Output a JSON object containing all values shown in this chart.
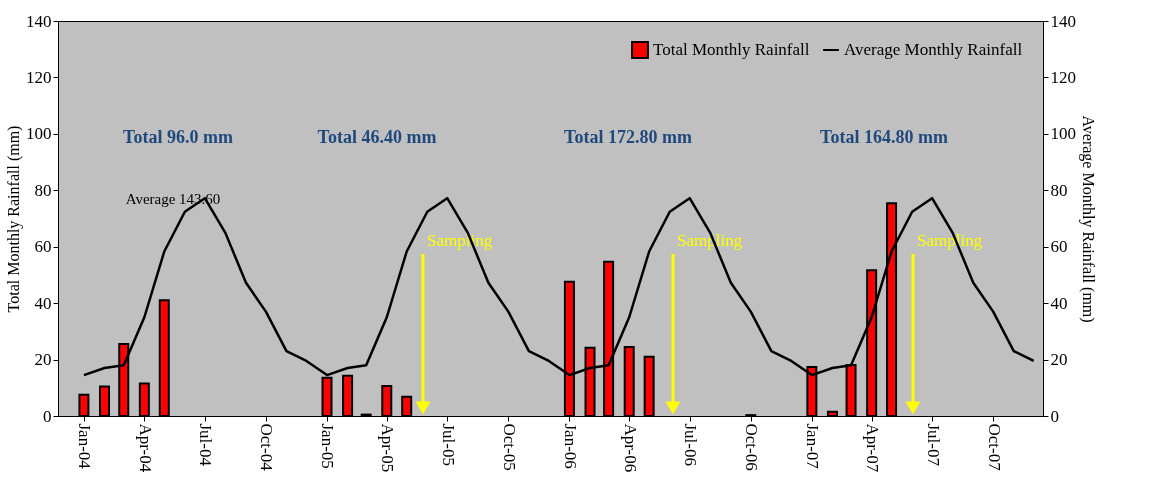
{
  "chart_data": {
    "type": "bar",
    "x": [
      "2004-01",
      "2004-02",
      "2004-03",
      "2004-04",
      "2004-05",
      "2004-06",
      "2004-07",
      "2004-08",
      "2004-09",
      "2004-10",
      "2004-11",
      "2004-12",
      "2005-01",
      "2005-02",
      "2005-03",
      "2005-04",
      "2005-05",
      "2005-06",
      "2005-07",
      "2005-08",
      "2005-09",
      "2005-10",
      "2005-11",
      "2005-12",
      "2006-01",
      "2006-02",
      "2006-03",
      "2006-04",
      "2006-05",
      "2006-06",
      "2006-07",
      "2006-08",
      "2006-09",
      "2006-10",
      "2006-11",
      "2006-12",
      "2007-01",
      "2007-02",
      "2007-03",
      "2007-04",
      "2007-05",
      "2007-06",
      "2007-07",
      "2007-08",
      "2007-09",
      "2007-10",
      "2007-11",
      "2007-12"
    ],
    "series": [
      {
        "name": "Total Monthly Rainfall",
        "color": "#ff0000",
        "values": [
          7.5,
          10.5,
          25.5,
          11.5,
          41,
          null,
          null,
          null,
          null,
          null,
          null,
          null,
          13.6,
          14.3,
          0.5,
          10.6,
          6.8,
          null,
          null,
          null,
          null,
          null,
          null,
          null,
          47.6,
          24.2,
          54.7,
          24.5,
          21,
          null,
          null,
          null,
          null,
          0.3,
          null,
          null,
          17.4,
          1.5,
          18.1,
          51.7,
          75.4,
          null,
          null,
          null,
          null,
          null,
          null,
          null
        ]
      },
      {
        "name": "Average Monthly Rainfall",
        "type": "line",
        "axis": "y2",
        "color": "#000000",
        "values": [
          14.5,
          17,
          18,
          35,
          58.3,
          72.4,
          77.2,
          64.9,
          47.2,
          37,
          23,
          19.5,
          14.5,
          17,
          18,
          35,
          58.3,
          72.4,
          77.2,
          64.9,
          47.2,
          37,
          23,
          19.5,
          14.5,
          17,
          18,
          35,
          58.3,
          72.4,
          77.2,
          64.9,
          47.2,
          37,
          23,
          19.5,
          14.5,
          17,
          18,
          35,
          58.3,
          72.4,
          77.2,
          64.9,
          47.2,
          37,
          23,
          19.5
        ]
      }
    ],
    "ylabel": "Total Monthly Rainfall (mm)",
    "y2label": "Average Monthly Rainfall (mm)",
    "xlim": [
      "2003-11-23",
      "2007-12-15"
    ],
    "xticks": [
      {
        "value": "2004-01",
        "label": "Jan-04"
      },
      {
        "value": "2004-04",
        "label": "Apr-04"
      },
      {
        "value": "2004-07",
        "label": "Jul-04"
      },
      {
        "value": "2004-10",
        "label": "Oct-04"
      },
      {
        "value": "2005-01",
        "label": "Jan-05"
      },
      {
        "value": "2005-04",
        "label": "Apr-05"
      },
      {
        "value": "2005-07",
        "label": "Jul-05"
      },
      {
        "value": "2005-10",
        "label": "Oct-05"
      },
      {
        "value": "2006-01",
        "label": "Jan-06"
      },
      {
        "value": "2006-04",
        "label": "Apr-06"
      },
      {
        "value": "2006-07",
        "label": "Jul-06"
      },
      {
        "value": "2006-10",
        "label": "Oct-06"
      },
      {
        "value": "2007-01",
        "label": "Jan-07"
      },
      {
        "value": "2007-04",
        "label": "Apr-07"
      },
      {
        "value": "2007-07",
        "label": "Jul-07"
      },
      {
        "value": "2007-10",
        "label": "Oct-07"
      }
    ],
    "ylim": [
      0,
      140
    ],
    "yticks": [
      0,
      20,
      40,
      60,
      80,
      100,
      120,
      140
    ],
    "y2lim": [
      0,
      140
    ],
    "y2ticks": [
      0,
      20,
      40,
      60,
      80,
      100,
      120,
      140
    ],
    "annotations": [
      "Total 96.0 mm",
      "Total 46.40 mm",
      "Total 172.80 mm",
      "Total 164.80 mm",
      "Average 143.60",
      "Sampling",
      "Sampling",
      "Sampling"
    ],
    "legend": "top right",
    "grid": false
  }
}
